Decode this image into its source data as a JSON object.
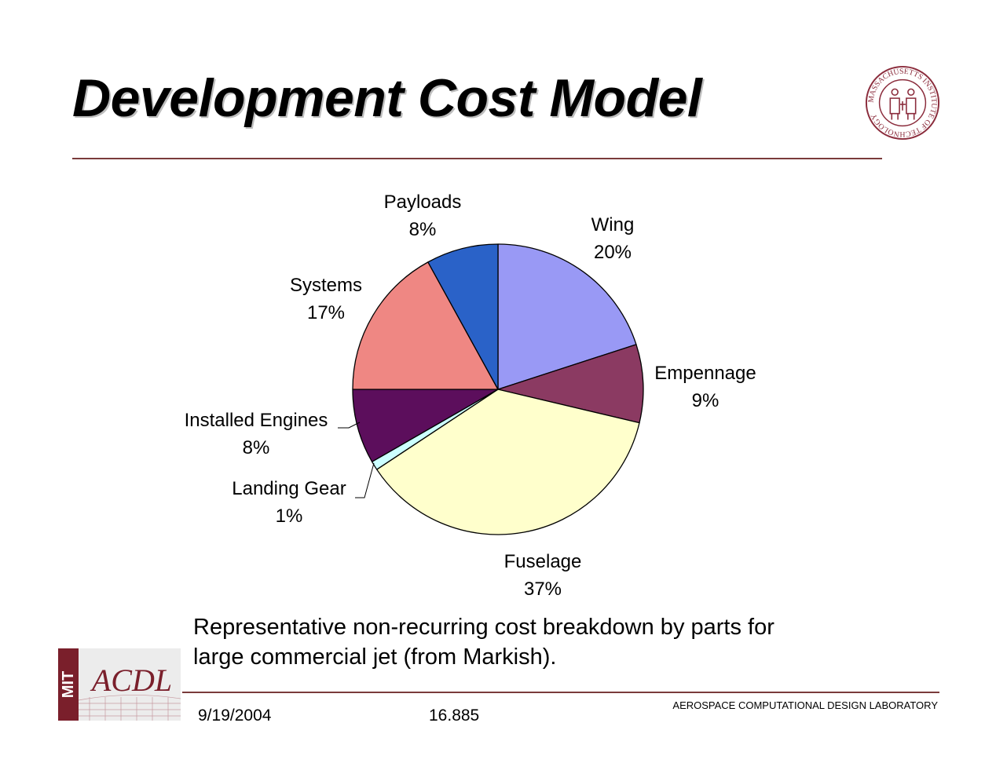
{
  "slide": {
    "title": "Development Cost Model",
    "caption": "Representative non-recurring cost breakdown by parts for\nlarge commercial jet (from Markish).",
    "footer": {
      "date": "9/19/2004",
      "course": "16.885",
      "lab": "AEROSPACE COMPUTATIONAL DESIGN LABORATORY"
    },
    "seal_text": "MASSACHUSETTS INSTITUTE OF TECHNOLOGY",
    "logo_text": {
      "left": "MIT",
      "right": "ACDL"
    },
    "colors": {
      "rule": "#7a3b3b",
      "seal": "#8b2c3c",
      "logo": "#7a1f2b"
    }
  },
  "chart_data": {
    "type": "pie",
    "title": "",
    "start_angle_deg": 0,
    "direction": "clockwise",
    "slices": [
      {
        "label": "Wing",
        "percent_label": "20%",
        "value": 20,
        "color": "#9999f5"
      },
      {
        "label": "Empennage",
        "percent_label": "9%",
        "value": 8.7,
        "color": "#8b3a62"
      },
      {
        "label": "Fuselage",
        "percent_label": "37%",
        "value": 37,
        "color": "#ffffcc"
      },
      {
        "label": "Landing Gear",
        "percent_label": "1%",
        "value": 1,
        "color": "#ccffff"
      },
      {
        "label": "Installed Engines",
        "percent_label": "8%",
        "value": 8.3,
        "color": "#5c0e5c"
      },
      {
        "label": "Systems",
        "percent_label": "17%",
        "value": 17,
        "color": "#ef8783"
      },
      {
        "label": "Payloads",
        "percent_label": "8%",
        "value": 8,
        "color": "#2a62c8"
      }
    ]
  }
}
